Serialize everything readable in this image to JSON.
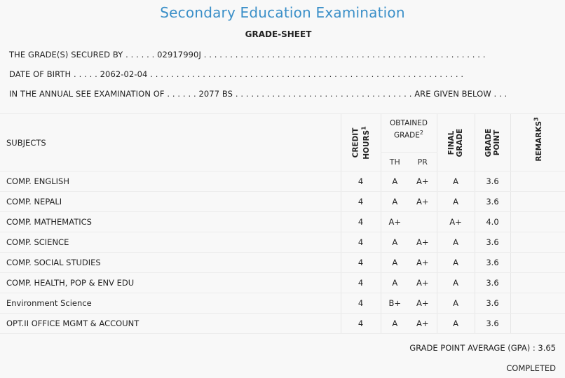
{
  "header": {
    "title": "Secondary Education Examination",
    "subtitle": "GRADE-SHEET"
  },
  "info": {
    "line1": "THE GRADE(S) SECURED BY . . . . . . 02917990J . . . . . . . . . . . . . . . . . . . . . . . . . . . . . . . . . . . . . . . . . . . . . . . . . . . . . .",
    "line2": "DATE OF BIRTH . . . . . 2062-02-04 . . . . . . . . . . . . . . . . . . . . . . . . . . . . . . . . . . . . . . . . . . . . . . . . . . . . . . . . . . . .",
    "line3": "IN THE ANNUAL SEE EXAMINATION OF . . . . . . 2077 BS . . . . . . . . . . . . . . . . . . . . . . . . . . . . . . . . . . ARE GIVEN BELOW . . ."
  },
  "table": {
    "headers": {
      "subjects": "SUBJECTS",
      "credit_hours_1": "CREDIT",
      "credit_hours_2": "HOURS",
      "credit_sup": "1",
      "obtained_1": "OBTAINED",
      "obtained_2": "GRADE",
      "obtained_sup": "2",
      "th": "TH",
      "pr": "PR",
      "final_1": "FINAL",
      "final_2": "GRADE",
      "point_1": "GRADE",
      "point_2": "POINT",
      "remarks": "REMARKS",
      "remarks_sup": "3"
    },
    "rows": [
      {
        "subject": "COMP. ENGLISH",
        "credit": "4",
        "th": "A",
        "pr": "A+",
        "final": "A",
        "point": "3.6",
        "remarks": ""
      },
      {
        "subject": "COMP. NEPALI",
        "credit": "4",
        "th": "A",
        "pr": "A+",
        "final": "A",
        "point": "3.6",
        "remarks": ""
      },
      {
        "subject": "COMP. MATHEMATICS",
        "credit": "4",
        "th": "A+",
        "pr": "",
        "final": "A+",
        "point": "4.0",
        "remarks": ""
      },
      {
        "subject": "COMP. SCIENCE",
        "credit": "4",
        "th": "A",
        "pr": "A+",
        "final": "A",
        "point": "3.6",
        "remarks": ""
      },
      {
        "subject": "COMP. SOCIAL STUDIES",
        "credit": "4",
        "th": "A",
        "pr": "A+",
        "final": "A",
        "point": "3.6",
        "remarks": ""
      },
      {
        "subject": "COMP. HEALTH, POP & ENV EDU",
        "credit": "4",
        "th": "A",
        "pr": "A+",
        "final": "A",
        "point": "3.6",
        "remarks": ""
      },
      {
        "subject": "Environment Science",
        "credit": "4",
        "th": "B+",
        "pr": "A+",
        "final": "A",
        "point": "3.6",
        "remarks": ""
      },
      {
        "subject": "OPT.II OFFICE MGMT & ACCOUNT",
        "credit": "4",
        "th": "A",
        "pr": "A+",
        "final": "A",
        "point": "3.6",
        "remarks": ""
      }
    ]
  },
  "summary": {
    "gpa_text": "GRADE POINT AVERAGE (GPA) : 3.65",
    "status": "COMPLETED"
  }
}
